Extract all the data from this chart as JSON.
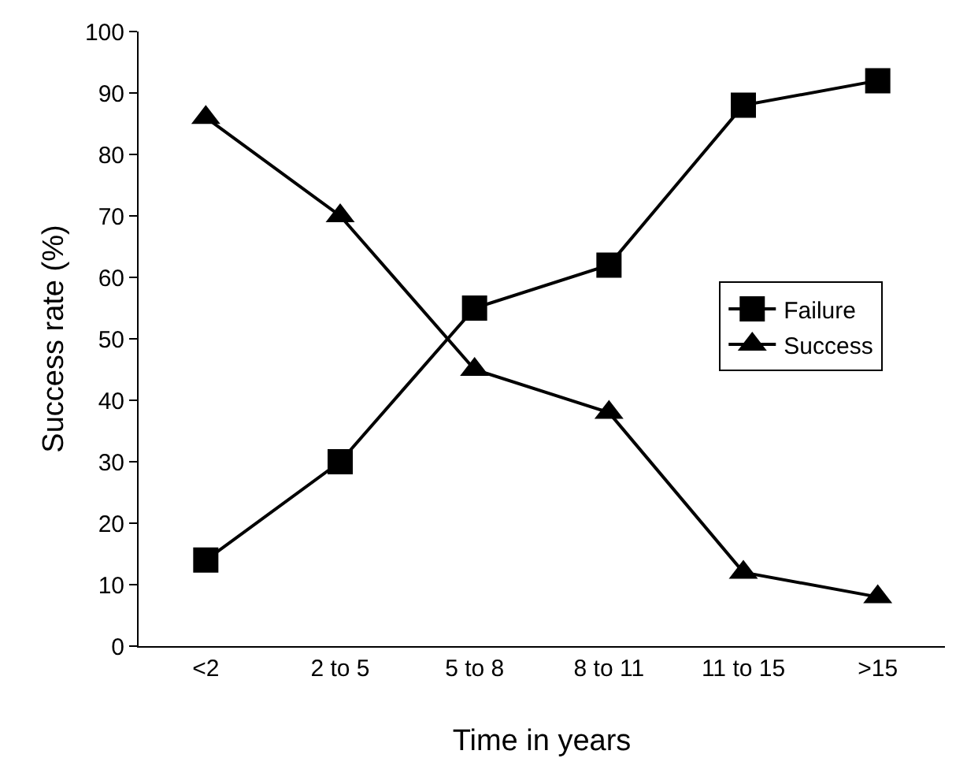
{
  "chart_data": {
    "type": "line",
    "xlabel": "Time in years",
    "ylabel": "Success rate (%)",
    "categories": [
      "<2",
      "2 to 5",
      "5 to 8",
      "8 to 11",
      "11 to 15",
      ">15"
    ],
    "series": [
      {
        "name": "Failure",
        "color": "#000000",
        "marker": "square",
        "values": [
          14,
          30,
          55,
          62,
          88,
          92
        ]
      },
      {
        "name": "Success",
        "color": "#000000",
        "marker": "triangle",
        "values": [
          86,
          70,
          45,
          38,
          12,
          8
        ]
      }
    ],
    "ylim": [
      0,
      100
    ],
    "yticks": [
      0,
      10,
      20,
      30,
      40,
      50,
      60,
      70,
      80,
      90,
      100
    ],
    "grid": false,
    "legend": "right",
    "line_style": "solid"
  }
}
